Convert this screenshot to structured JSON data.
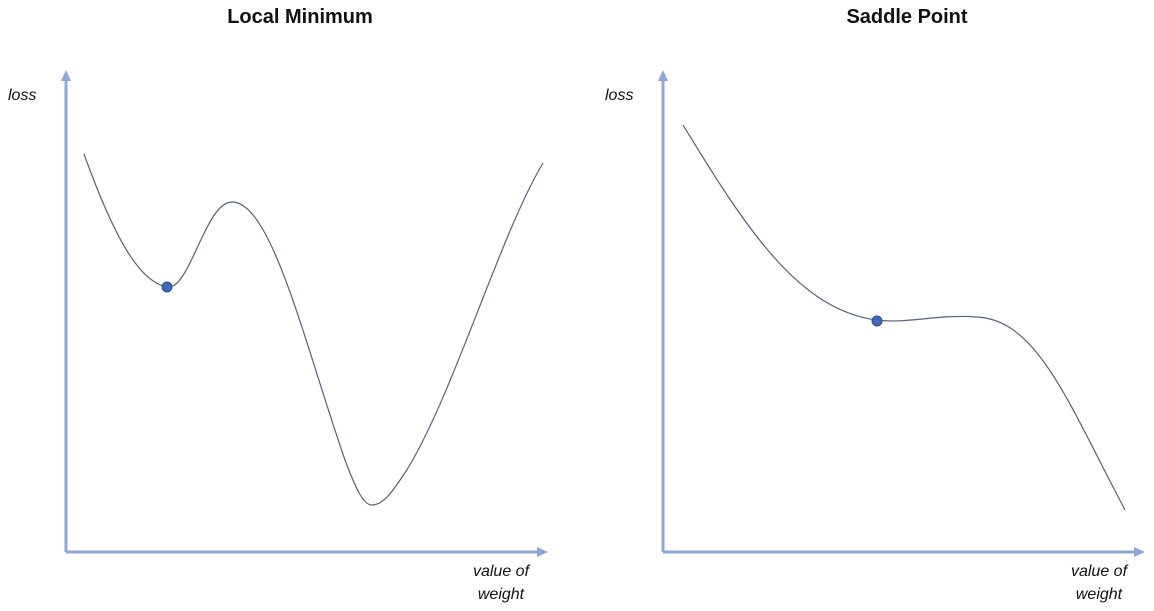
{
  "colors": {
    "axis": "#8fa7d6",
    "curve": "#56617a",
    "point": "#4169b8",
    "point_stroke": "#2e4f8f"
  },
  "panels": [
    {
      "title": "Local Minimum",
      "ylabel": "loss",
      "xlabel_line1": "value of",
      "xlabel_line2": "weight"
    },
    {
      "title": "Saddle Point",
      "ylabel": "loss",
      "xlabel_line1": "value of",
      "xlabel_line2": "weight"
    }
  ]
}
